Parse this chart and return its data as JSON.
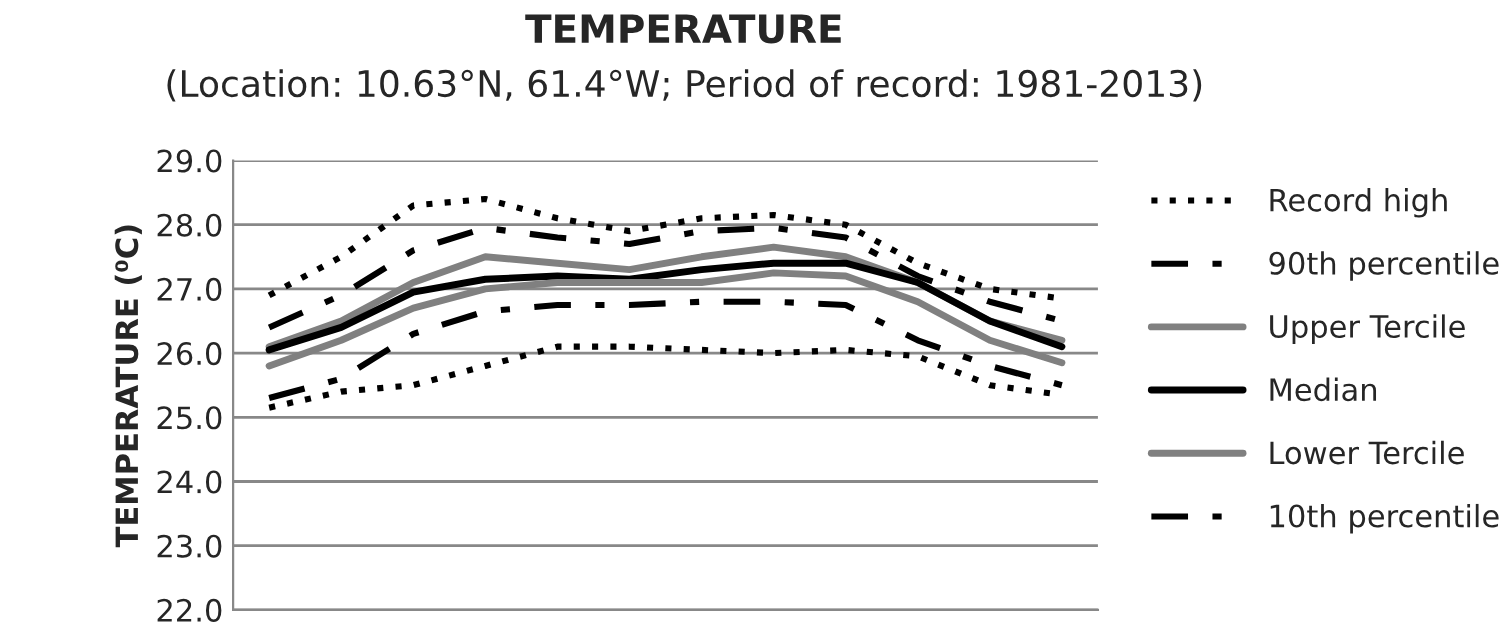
{
  "chart_data": {
    "type": "line",
    "title": "TEMPERATURE",
    "subtitle": "(Location: 10.63°N, 61.4°W; Period of record: 1981-2013)",
    "ylabel": "TEMPERATURE (⁰C)",
    "categories": [
      null,
      null,
      null,
      null,
      null,
      null,
      null,
      null,
      null,
      null,
      null,
      null
    ],
    "ylim": [
      22,
      29
    ],
    "yticks": [
      {
        "value": 22,
        "label": "22.0"
      },
      {
        "value": 23,
        "label": "23.0"
      },
      {
        "value": 24,
        "label": "24.0"
      },
      {
        "value": 25,
        "label": "25.0"
      },
      {
        "value": 26,
        "label": "26.0"
      },
      {
        "value": 27,
        "label": "27.0"
      },
      {
        "value": 28,
        "label": "28.0"
      },
      {
        "value": 29,
        "label": "29.0"
      }
    ],
    "grid": "y",
    "legend": "right",
    "tick_labels": "y",
    "series": [
      {
        "name": "Record high",
        "color": "#000000",
        "line_style": "dotted",
        "values": [
          26.9,
          27.5,
          28.3,
          28.4,
          28.1,
          27.9,
          28.1,
          28.15,
          28.0,
          27.4,
          27.0,
          26.85
        ]
      },
      {
        "name": "90th percentile",
        "color": "#000000",
        "line_style": "dashdot",
        "values": [
          26.4,
          26.9,
          27.6,
          27.95,
          27.8,
          27.7,
          27.9,
          27.95,
          27.8,
          27.2,
          26.8,
          26.5
        ]
      },
      {
        "name": "Upper Tercile",
        "color": "#808080",
        "line_style": "solid",
        "values": [
          26.1,
          26.5,
          27.1,
          27.5,
          27.4,
          27.3,
          27.5,
          27.65,
          27.5,
          27.1,
          26.5,
          26.2
        ]
      },
      {
        "name": "Median",
        "color": "#000000",
        "line_style": "solid",
        "values": [
          26.05,
          26.4,
          26.95,
          27.15,
          27.2,
          27.15,
          27.3,
          27.4,
          27.4,
          27.1,
          26.5,
          26.1
        ]
      },
      {
        "name": "Lower Tercile",
        "color": "#808080",
        "line_style": "solid",
        "values": [
          25.8,
          26.2,
          26.7,
          27.0,
          27.1,
          27.1,
          27.1,
          27.25,
          27.2,
          26.8,
          26.2,
          25.85
        ]
      },
      {
        "name": "10th percentile",
        "color": "#000000",
        "line_style": "dashdot",
        "values": [
          25.3,
          25.6,
          26.3,
          26.65,
          26.75,
          26.75,
          26.8,
          26.8,
          26.75,
          26.2,
          25.8,
          25.5
        ]
      },
      {
        "color": "#000000",
        "line_style": "dotted",
        "values": [
          25.15,
          25.4,
          25.5,
          25.8,
          26.1,
          26.1,
          26.05,
          26.0,
          26.05,
          25.95,
          25.5,
          25.35
        ]
      }
    ]
  }
}
